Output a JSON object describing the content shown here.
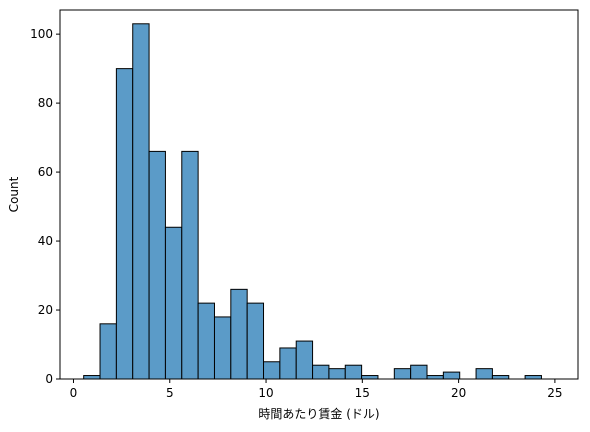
{
  "chart_data": {
    "type": "bar",
    "subtype": "histogram",
    "xlabel": "時間あたり賃金 (ドル)",
    "ylabel": "Count",
    "xlim": [
      -0.7,
      26.2
    ],
    "ylim": [
      0,
      107
    ],
    "xticks": [
      0,
      5,
      10,
      15,
      20,
      25
    ],
    "yticks": [
      0,
      20,
      40,
      60,
      80,
      100
    ],
    "bin_start": 0.53,
    "bin_width": 0.849,
    "values": [
      1,
      16,
      90,
      103,
      66,
      44,
      66,
      22,
      18,
      26,
      22,
      5,
      9,
      11,
      4,
      3,
      4,
      1,
      0,
      3,
      4,
      1,
      2,
      0,
      3,
      1,
      0,
      1
    ],
    "bar_color": "#5b9bc8",
    "edge_color": "#000000",
    "grid": false
  }
}
